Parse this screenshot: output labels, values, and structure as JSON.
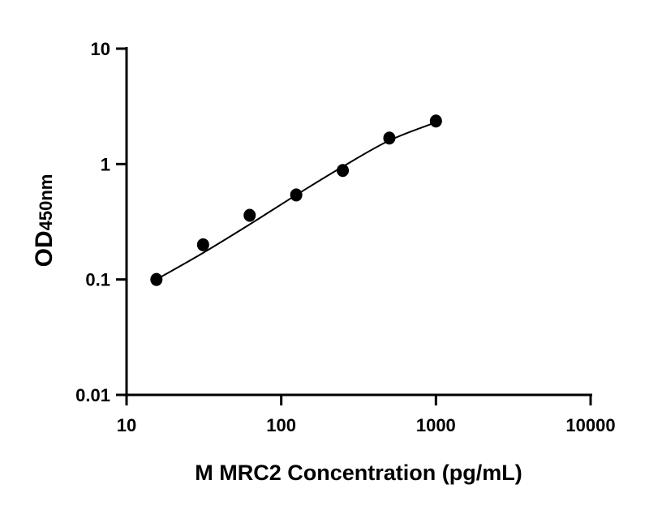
{
  "chart_data": {
    "type": "scatter",
    "title": "",
    "xlabel": "M MRC2 Concentration (pg/mL)",
    "ylabel_main": "OD",
    "ylabel_sub": "450nm",
    "x_scale": "log",
    "y_scale": "log",
    "xlim": [
      10,
      10000
    ],
    "ylim": [
      0.01,
      10
    ],
    "x_ticks": [
      "10",
      "100",
      "1000",
      "10000"
    ],
    "y_ticks": [
      "0.01",
      "0.1",
      "1",
      "10"
    ],
    "grid": false,
    "legend": "none",
    "points": {
      "x": [
        15.6,
        31.25,
        62.5,
        125,
        250,
        500,
        1000
      ],
      "y": [
        0.1,
        0.2,
        0.36,
        0.54,
        0.88,
        1.68,
        2.36
      ]
    },
    "fit_curve": {
      "x": [
        15.6,
        31.25,
        62.5,
        125,
        250,
        500,
        1000
      ],
      "y": [
        0.1,
        0.17,
        0.3,
        0.54,
        0.95,
        1.6,
        2.3
      ]
    },
    "colors": {
      "marker": "#000000",
      "line": "#000000"
    }
  }
}
